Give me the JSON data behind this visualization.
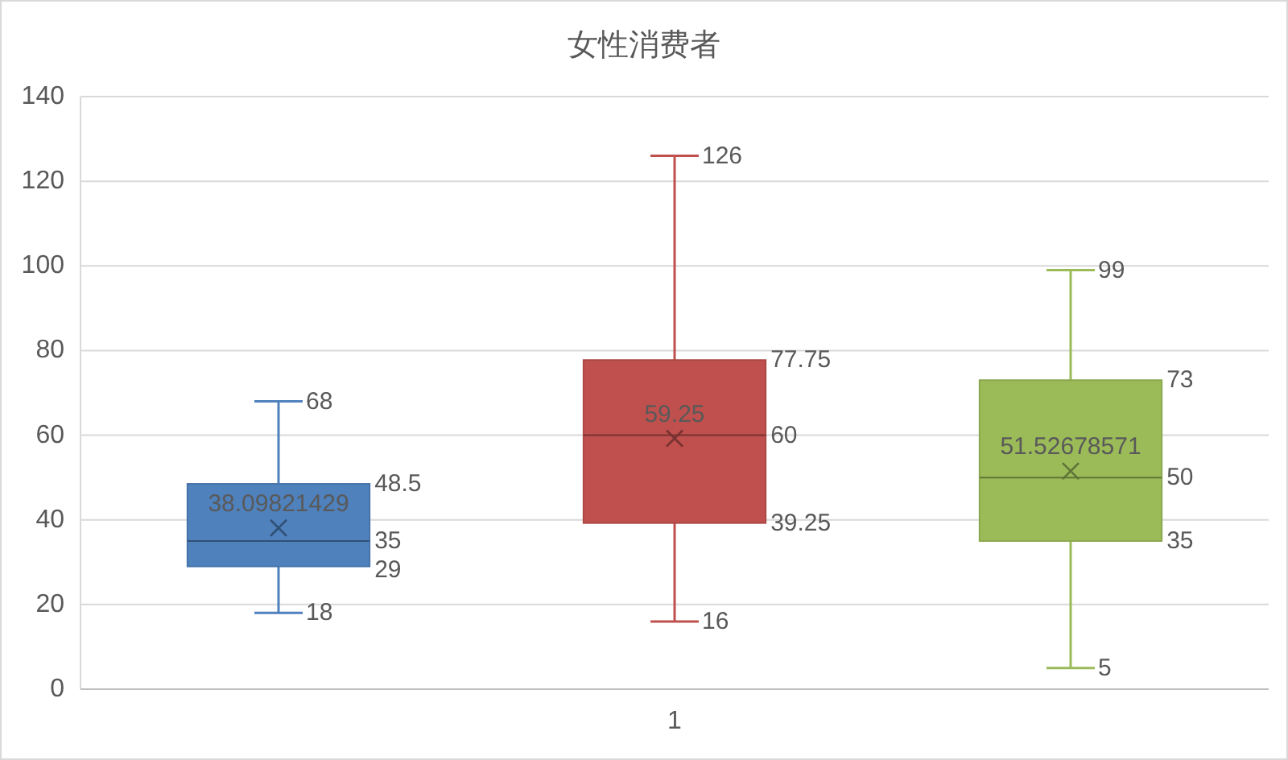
{
  "chart_data": {
    "type": "box",
    "title": "女性消费者",
    "categories": [
      null,
      "1",
      null
    ],
    "boxes": [
      {
        "low": 18,
        "q1": 29,
        "median": 35,
        "q3": 48.5,
        "high": 68,
        "mean": 38.09821429
      },
      {
        "low": 16,
        "q1": 39.25,
        "median": 60,
        "q3": 77.75,
        "high": 126,
        "mean": 59.25
      },
      {
        "low": 5,
        "q1": 35,
        "median": 50,
        "q3": 73,
        "high": 99,
        "mean": 51.52678571
      }
    ],
    "colors": [
      "#4f81bd",
      "#c0504d",
      "#9bbb59"
    ],
    "ylim": [
      0,
      140
    ],
    "yticks": [
      0,
      20,
      40,
      60,
      80,
      100,
      120,
      140
    ],
    "grid": "y",
    "annotations": [
      "68",
      "48.5",
      "38.09821429",
      "35",
      "29",
      "18",
      "126",
      "77.75",
      "59.25",
      "60",
      "39.25",
      "16",
      "99",
      "73",
      "51.52678571",
      "50",
      "35",
      "5"
    ]
  }
}
